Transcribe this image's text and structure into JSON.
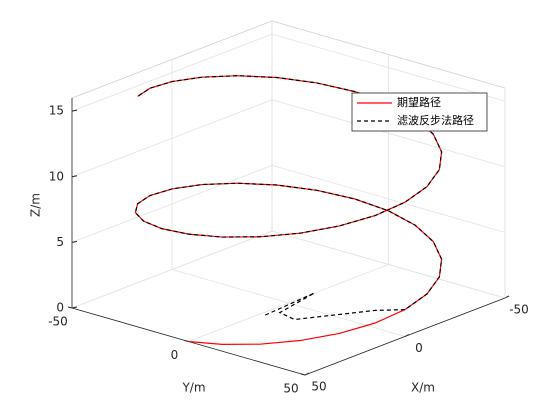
{
  "chart_data": {
    "type": "line3d",
    "xlabel": "X/m",
    "ylabel": "Y/m",
    "zlabel": "Z/m",
    "xlim": [
      -50,
      50
    ],
    "ylim": [
      -50,
      50
    ],
    "zlim": [
      0,
      16
    ],
    "xticks": [
      -50,
      0,
      50
    ],
    "yticks": [
      -50,
      0,
      50
    ],
    "zticks": [
      0,
      5,
      10,
      15
    ],
    "grid": true,
    "legend": "northeast",
    "series": [
      {
        "name": "期望路径",
        "color": "#ff0000",
        "line_style": "solid",
        "x": [
          50,
          48.3,
          43.3,
          35.36,
          25,
          12.94,
          0,
          -12.94,
          -25,
          -35.36,
          -43.3,
          -48.3,
          -50,
          -48.3,
          -43.3,
          -35.36,
          -25,
          -12.94,
          0,
          12.94,
          25,
          35.36,
          43.3,
          48.3,
          50,
          48.3,
          43.3,
          35.36,
          25,
          12.94,
          0,
          -12.94,
          -25,
          -35.36,
          -43.3,
          -48.3,
          -50,
          -48.3,
          -43.3,
          -35.36,
          -25,
          -12.94,
          0,
          12.94,
          25
        ],
        "y": [
          0,
          12.94,
          25,
          35.36,
          43.3,
          48.3,
          50,
          48.3,
          43.3,
          35.36,
          25,
          12.94,
          0,
          -12.94,
          -25,
          -35.36,
          -43.3,
          -48.3,
          -50,
          -48.3,
          -43.3,
          -35.36,
          -25,
          -12.94,
          0,
          12.94,
          25,
          35.36,
          43.3,
          48.3,
          50,
          48.3,
          43.3,
          35.36,
          25,
          12.94,
          0,
          -12.94,
          -25,
          -35.36,
          -43.3,
          -48.3,
          -50,
          -48.3,
          -43.3
        ],
        "z": [
          0,
          0.34,
          0.68,
          1.02,
          1.36,
          1.7,
          2.05,
          2.39,
          2.73,
          3.07,
          3.41,
          3.75,
          4.09,
          4.43,
          4.77,
          5.11,
          5.45,
          5.8,
          6.14,
          6.48,
          6.82,
          7.16,
          7.5,
          7.84,
          8.18,
          8.52,
          8.86,
          9.2,
          9.55,
          9.89,
          10.23,
          10.57,
          10.91,
          11.25,
          11.59,
          11.93,
          12.27,
          12.61,
          12.95,
          13.3,
          13.64,
          13.98,
          14.32,
          14.66,
          15
        ]
      },
      {
        "name": "滤波反步法路径",
        "color": "#000000",
        "line_style": "dashed",
        "x": [
          14,
          -13,
          9,
          11,
          -1,
          -13,
          0,
          -12.94,
          -25,
          -35.36,
          -43.3,
          -48.3,
          -50,
          -48.3,
          -43.3,
          -35.36,
          -25,
          -12.94,
          0,
          12.94,
          25,
          35.36,
          43.3,
          48.3,
          50,
          48.3,
          43.3,
          35.36,
          25,
          12.94,
          0,
          -12.94,
          -25,
          -35.36,
          -43.3,
          -48.3,
          -50,
          -48.3,
          -43.3,
          -35.36,
          -25,
          -12.94,
          0,
          12.94,
          25
        ],
        "y": [
          2,
          0,
          4,
          12,
          19,
          26,
          50,
          48.3,
          43.3,
          35.36,
          25,
          12.94,
          0,
          -12.94,
          -25,
          -35.36,
          -43.3,
          -48.3,
          -50,
          -48.3,
          -43.3,
          -35.36,
          -25,
          -12.94,
          0,
          12.94,
          25,
          35.36,
          43.3,
          48.3,
          50,
          48.3,
          43.3,
          35.36,
          25,
          12.94,
          0,
          -12.94,
          -25,
          -35.36,
          -43.3,
          -48.3,
          -50,
          -48.3,
          -43.3
        ],
        "z": [
          0,
          0,
          0,
          0,
          0,
          0,
          2.05,
          2.39,
          2.73,
          3.07,
          3.41,
          3.75,
          4.09,
          4.43,
          4.77,
          5.11,
          5.45,
          5.8,
          6.14,
          6.48,
          6.82,
          7.16,
          7.5,
          7.84,
          8.18,
          8.52,
          8.86,
          9.2,
          9.55,
          9.89,
          10.23,
          10.57,
          10.91,
          11.25,
          11.59,
          11.93,
          12.27,
          12.61,
          12.95,
          13.3,
          13.64,
          13.98,
          14.32,
          14.66,
          15
        ]
      }
    ]
  }
}
